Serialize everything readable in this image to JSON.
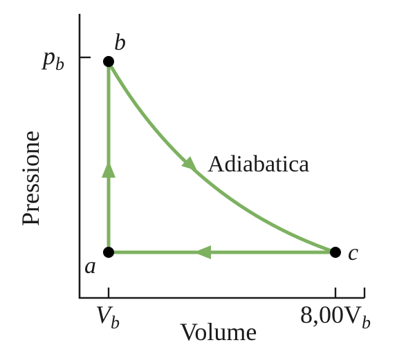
{
  "axes": {
    "x_label": "Volume",
    "y_label": "Pressione",
    "x_ticks": [
      {
        "main": "V",
        "sub": "b"
      },
      {
        "main": "8,00V",
        "sub": "b"
      }
    ],
    "y_tick": {
      "main": "p",
      "sub": "b"
    }
  },
  "points": [
    {
      "id": "a",
      "label": "a"
    },
    {
      "id": "b",
      "label": "b"
    },
    {
      "id": "c",
      "label": "c"
    }
  ],
  "processes": [
    {
      "id": "ab",
      "from": "a",
      "to": "b",
      "label": ""
    },
    {
      "id": "bc",
      "from": "b",
      "to": "c",
      "label": "Adiabatica"
    },
    {
      "id": "ca",
      "from": "c",
      "to": "a",
      "label": ""
    }
  ],
  "colors": {
    "process_line": "#7db160",
    "axis": "#1a1a1a",
    "point": "#000000"
  }
}
